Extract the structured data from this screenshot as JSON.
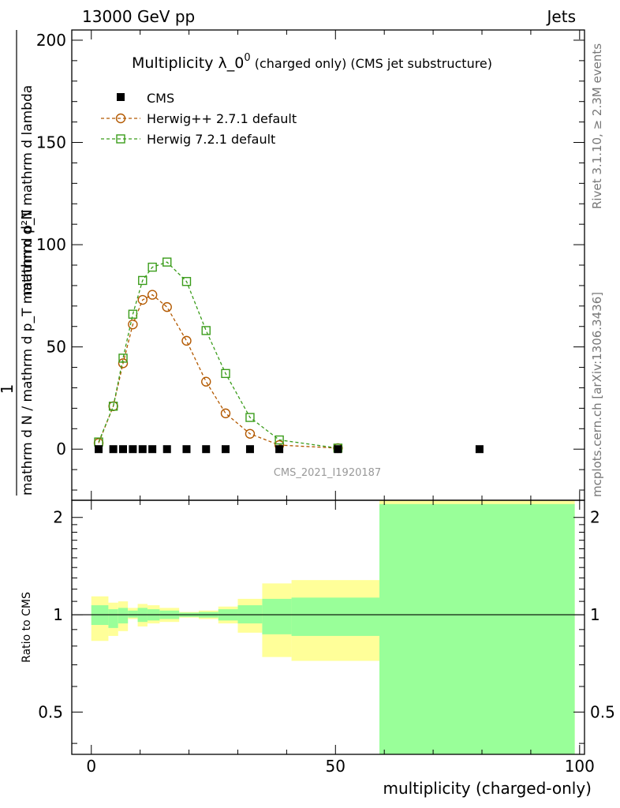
{
  "header": {
    "left": "13000 GeV pp",
    "right": "Jets"
  },
  "side": {
    "top": "Rivet 3.1.10, ≥ 2.3M events",
    "bottom": "mcplots.cern.ch [arXiv:1306.3436]"
  },
  "colors": {
    "cms": "#000000",
    "herwigpp": "#b35900",
    "herwig7": "#3a9c1a",
    "band_outer": "#ffff99",
    "band_inner": "#99ff99"
  },
  "chart_data": [
    {
      "type": "line",
      "title_main": "Multiplicity λ_0",
      "title_sup": "0",
      "title_rest": " (charged only) (CMS jet substructure)",
      "ylabel_num": "mathrm d²N",
      "ylabel_den": "mathrm d N / mathrm d p_T mathrm d p_T mathrm d lambda",
      "ylabel_one": "1",
      "watermark": "CMS_2021_I1920187",
      "xlim": [
        -4,
        101
      ],
      "ylim": [
        -25,
        205
      ],
      "yticks": [
        0,
        50,
        100,
        150,
        200
      ],
      "ytick_labels": [
        "0",
        "50",
        "100",
        "150",
        "200"
      ],
      "legend": [
        "CMS",
        "Herwig++ 2.7.1 default",
        "Herwig 7.2.1 default"
      ],
      "series": [
        {
          "name": "CMS",
          "marker": "square-filled",
          "x": [
            1.5,
            4.5,
            6.5,
            8.5,
            10.5,
            12.5,
            15.5,
            19.5,
            23.5,
            27.5,
            32.5,
            38.5,
            50.5,
            79.5
          ],
          "y": [
            0,
            0,
            0,
            0,
            0,
            0,
            0,
            0,
            0,
            0,
            0,
            0,
            0,
            0
          ]
        },
        {
          "name": "Herwig++ 2.7.1 default",
          "marker": "circle-open",
          "x": [
            1.5,
            4.5,
            6.5,
            8.5,
            10.5,
            12.5,
            15.5,
            19.5,
            23.5,
            27.5,
            32.5,
            38.5,
            50.5
          ],
          "y": [
            3,
            21,
            42,
            61,
            73,
            75.5,
            69.5,
            53,
            33,
            17.5,
            7.5,
            2,
            0.5
          ]
        },
        {
          "name": "Herwig 7.2.1 default",
          "marker": "square-open",
          "x": [
            1.5,
            4.5,
            6.5,
            8.5,
            10.5,
            12.5,
            15.5,
            19.5,
            23.5,
            27.5,
            32.5,
            38.5,
            50.5
          ],
          "y": [
            3.5,
            21,
            44.5,
            66,
            82.5,
            89,
            91.5,
            82,
            58,
            37,
            15.5,
            4.5,
            0.5
          ]
        }
      ]
    },
    {
      "type": "area",
      "ylabel": "Ratio to CMS",
      "xlabel": "multiplicity (charged-only)",
      "xlim": [
        -4,
        101
      ],
      "ylim": [
        0.37,
        2.26
      ],
      "xticks": [
        0,
        50,
        100
      ],
      "xtick_labels": [
        "0",
        "50",
        "100"
      ],
      "yticks": [
        0.5,
        1,
        2
      ],
      "ytick_labels": [
        "0.5",
        "1",
        "2"
      ],
      "bands": [
        {
          "x0": 0,
          "x1": 3.5,
          "inner": [
            0.93,
            1.07
          ],
          "outer": [
            0.83,
            1.14
          ]
        },
        {
          "x0": 3.5,
          "x1": 5.5,
          "inner": [
            0.91,
            1.04
          ],
          "outer": [
            0.86,
            1.09
          ]
        },
        {
          "x0": 5.5,
          "x1": 7.5,
          "inner": [
            0.94,
            1.05
          ],
          "outer": [
            0.89,
            1.1
          ]
        },
        {
          "x0": 7.5,
          "x1": 9.5,
          "inner": [
            0.98,
            1.03
          ],
          "outer": [
            0.97,
            1.05
          ]
        },
        {
          "x0": 9.5,
          "x1": 11.5,
          "inner": [
            0.95,
            1.05
          ],
          "outer": [
            0.92,
            1.08
          ]
        },
        {
          "x0": 11.5,
          "x1": 14,
          "inner": [
            0.96,
            1.04
          ],
          "outer": [
            0.94,
            1.07
          ]
        },
        {
          "x0": 14,
          "x1": 18,
          "inner": [
            0.97,
            1.03
          ],
          "outer": [
            0.95,
            1.05
          ]
        },
        {
          "x0": 18,
          "x1": 22,
          "inner": [
            0.985,
            1.015
          ],
          "outer": [
            0.98,
            1.02
          ]
        },
        {
          "x0": 22,
          "x1": 26,
          "inner": [
            0.98,
            1.02
          ],
          "outer": [
            0.97,
            1.03
          ]
        },
        {
          "x0": 26,
          "x1": 30,
          "inner": [
            0.96,
            1.04
          ],
          "outer": [
            0.94,
            1.06
          ]
        },
        {
          "x0": 30,
          "x1": 35,
          "inner": [
            0.94,
            1.07
          ],
          "outer": [
            0.88,
            1.12
          ]
        },
        {
          "x0": 35,
          "x1": 41,
          "inner": [
            0.87,
            1.12
          ],
          "outer": [
            0.74,
            1.25
          ]
        },
        {
          "x0": 41,
          "x1": 59,
          "inner": [
            0.86,
            1.13
          ],
          "outer": [
            0.72,
            1.28
          ]
        },
        {
          "x0": 59,
          "x1": 99,
          "inner": [
            0.37,
            2.2
          ],
          "outer": [
            0.37,
            2.3
          ]
        }
      ],
      "reference": 1
    }
  ]
}
